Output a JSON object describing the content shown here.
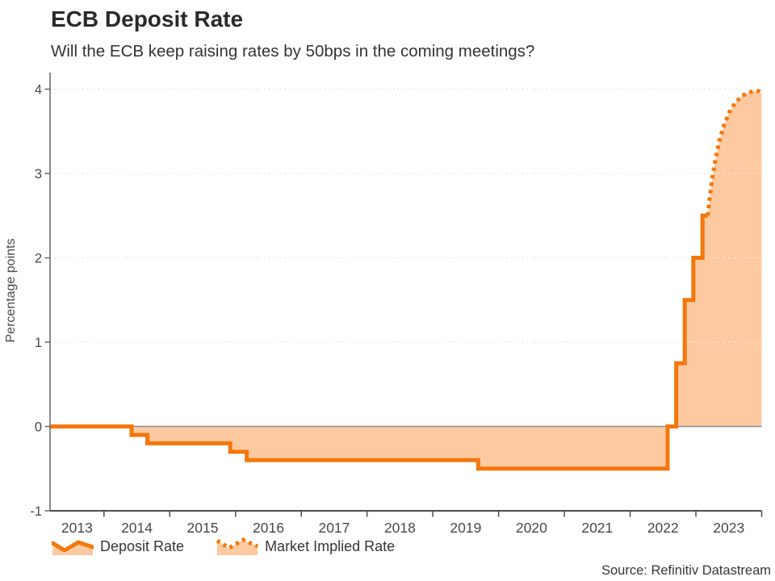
{
  "header": {
    "title": "ECB Deposit Rate",
    "subtitle": "Will the ECB keep raising rates by 50bps in the coming meetings?"
  },
  "source": "Source: Refinitiv Datastream",
  "colors": {
    "line_orange": "#F4770C",
    "fill_peach": "#FDC9A1",
    "zero_line_gray": "#8C8C8C",
    "axis_gray": "#555555",
    "grid_gray": "#DFDFDF",
    "text_dark": "#2A2A2A",
    "tick_text": "#484848"
  },
  "chart_data": {
    "type": "area",
    "title": "ECB Deposit Rate",
    "ylabel": "Percentage points",
    "xlabel": "",
    "ylim": [
      -1,
      4
    ],
    "xlim": [
      2013.18,
      2024.0
    ],
    "yticks": [
      4,
      3,
      2,
      1,
      0,
      -1
    ],
    "gridline_values": [
      4,
      3,
      2,
      1
    ],
    "x_years": [
      2013,
      2014,
      2015,
      2016,
      2017,
      2018,
      2019,
      2020,
      2021,
      2022,
      2023
    ],
    "grid": true,
    "legend_position": "bottom",
    "series": [
      {
        "name": "Deposit Rate",
        "style": "solid-step",
        "note": "each point [decimal_year, rate] marks when the rate changed to that value",
        "points": [
          [
            2013.18,
            0.0
          ],
          [
            2014.42,
            -0.1
          ],
          [
            2014.66,
            -0.2
          ],
          [
            2015.92,
            -0.3
          ],
          [
            2016.17,
            -0.4
          ],
          [
            2019.69,
            -0.5
          ],
          [
            2022.57,
            0.0
          ],
          [
            2022.7,
            0.75
          ],
          [
            2022.83,
            1.5
          ],
          [
            2022.96,
            2.0
          ],
          [
            2023.1,
            2.5
          ],
          [
            2023.18,
            2.5
          ]
        ]
      },
      {
        "name": "Market Implied Rate",
        "style": "dotted-line",
        "points": [
          [
            2023.18,
            2.5
          ],
          [
            2023.21,
            2.72
          ],
          [
            2023.25,
            2.95
          ],
          [
            2023.3,
            3.18
          ],
          [
            2023.36,
            3.4
          ],
          [
            2023.43,
            3.58
          ],
          [
            2023.51,
            3.73
          ],
          [
            2023.6,
            3.84
          ],
          [
            2023.7,
            3.92
          ],
          [
            2023.8,
            3.96
          ],
          [
            2023.9,
            3.98
          ],
          [
            2023.96,
            3.975
          ],
          [
            2024.0,
            3.95
          ]
        ]
      }
    ]
  }
}
